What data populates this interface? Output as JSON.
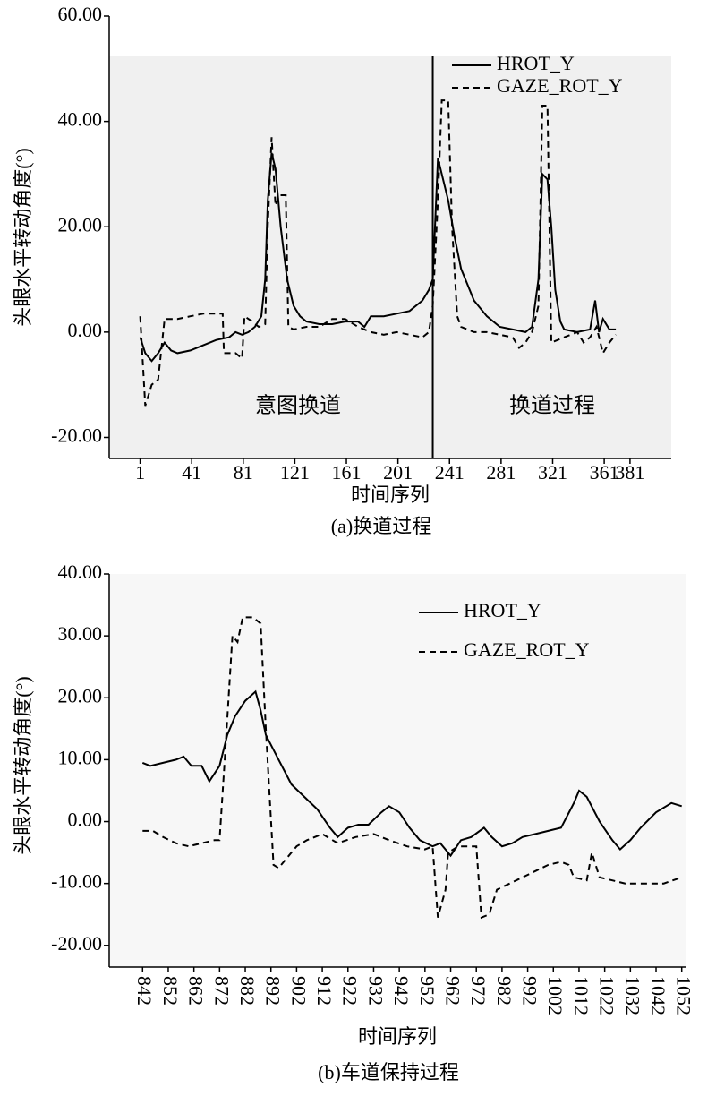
{
  "chart_data": [
    {
      "type": "line",
      "ylabel": "头眼水平转动角度(°)",
      "xlabel": "时间序列",
      "caption": "(a)换道过程",
      "xlim": [
        -23,
        413
      ],
      "ylim": [
        -24,
        60
      ],
      "xticks": [
        1,
        41,
        81,
        121,
        161,
        201,
        241,
        281,
        321,
        361,
        381
      ],
      "yticks": [
        {
          "value": -20,
          "label": "-20.00"
        },
        {
          "value": 0,
          "label": "0.00"
        },
        {
          "value": 20,
          "label": "20.00"
        },
        {
          "value": 40,
          "label": "40.00"
        },
        {
          "value": 60,
          "label": "60.00"
        }
      ],
      "vline": 228,
      "annotations": [
        "意图换道",
        "换道过程"
      ],
      "legend": "upper right",
      "series": [
        {
          "name": "HROT_Y",
          "color": "#000000",
          "dash": "solid",
          "x": [
            1,
            5,
            10,
            15,
            20,
            25,
            30,
            40,
            50,
            60,
            70,
            75,
            80,
            85,
            90,
            95,
            98,
            100,
            103,
            106,
            110,
            115,
            120,
            125,
            130,
            140,
            150,
            160,
            170,
            175,
            180,
            190,
            200,
            210,
            220,
            225,
            228,
            232,
            235,
            240,
            245,
            250,
            255,
            260,
            270,
            280,
            290,
            300,
            305,
            310,
            313,
            317,
            320,
            323,
            327,
            330,
            340,
            350,
            354,
            357,
            360,
            365,
            370
          ],
          "values": [
            -1,
            -4,
            -5.5,
            -4,
            -2,
            -3.5,
            -4,
            -3.5,
            -2.5,
            -1.5,
            -1,
            0,
            -0.5,
            0,
            1,
            3,
            10,
            25,
            34,
            31,
            20,
            10,
            5,
            3,
            2,
            1.5,
            1.5,
            2,
            2,
            1,
            3,
            3,
            3.5,
            4,
            6,
            8,
            10,
            33,
            30,
            25,
            18,
            12,
            9,
            6,
            3,
            1,
            0.5,
            0,
            1,
            10,
            30,
            29,
            20,
            8,
            2,
            0.5,
            0,
            0.5,
            6,
            0,
            2.5,
            0.5,
            0.5
          ]
        },
        {
          "name": "GAZE_ROT_Y",
          "color": "#000000",
          "dash": "dashed",
          "x": [
            1,
            5,
            10,
            15,
            20,
            30,
            40,
            50,
            60,
            65,
            66,
            75,
            80,
            82,
            88,
            93,
            98,
            100,
            103,
            106,
            109,
            114,
            116,
            120,
            130,
            140,
            150,
            160,
            170,
            180,
            190,
            200,
            210,
            220,
            225,
            228,
            232,
            235,
            240,
            243,
            247,
            250,
            260,
            270,
            280,
            290,
            295,
            300,
            305,
            310,
            313,
            317,
            320,
            330,
            340,
            345,
            350,
            355,
            360,
            365,
            370
          ],
          "values": [
            3,
            -14,
            -10,
            -9,
            2.5,
            2.5,
            3,
            3.5,
            3.5,
            3.5,
            -4,
            -4,
            -5,
            3,
            2,
            1,
            1.5,
            20,
            37,
            24,
            26,
            26,
            1,
            0.5,
            1,
            1,
            2.5,
            2.5,
            1,
            0,
            -0.5,
            0,
            -0.5,
            -1,
            0,
            5,
            25,
            44,
            44,
            20,
            3,
            1,
            0,
            0,
            -0.5,
            -1,
            -3,
            -2,
            0,
            5,
            43,
            43,
            -2,
            -1,
            0,
            -2,
            -1,
            1,
            -4,
            -2,
            -0.5
          ]
        }
      ]
    },
    {
      "type": "line",
      "ylabel": "头眼水平转动角度(°)",
      "xlabel": "时间序列",
      "caption": "(b)车道保持过程",
      "xlim": [
        829,
        1053.5
      ],
      "ylim": [
        -23.5,
        40
      ],
      "xticks": [
        842,
        852,
        862,
        872,
        882,
        892,
        902,
        912,
        922,
        932,
        942,
        952,
        962,
        972,
        982,
        992,
        1002,
        1012,
        1022,
        1032,
        1042,
        1052
      ],
      "yticks": [
        {
          "value": -20,
          "label": "-20.00"
        },
        {
          "value": -10,
          "label": "-10.00"
        },
        {
          "value": 0,
          "label": "0.00"
        },
        {
          "value": 10,
          "label": "10.00"
        },
        {
          "value": 20,
          "label": "20.00"
        },
        {
          "value": 30,
          "label": "30.00"
        },
        {
          "value": 40,
          "label": "40.00"
        }
      ],
      "legend": "upper right",
      "series": [
        {
          "name": "HROT_Y",
          "color": "#000000",
          "dash": "solid",
          "x": [
            842,
            845,
            850,
            855,
            858,
            861,
            865,
            868,
            872,
            875,
            878,
            882,
            886,
            888,
            890,
            895,
            900,
            905,
            910,
            915,
            918,
            922,
            926,
            930,
            935,
            938,
            942,
            946,
            950,
            955,
            958,
            962,
            966,
            970,
            975,
            978,
            982,
            986,
            990,
            995,
            1000,
            1005,
            1010,
            1012,
            1015,
            1020,
            1025,
            1028,
            1032,
            1036,
            1042,
            1048,
            1052
          ],
          "values": [
            9.5,
            9,
            9.5,
            10,
            10.5,
            9,
            9,
            6.5,
            9,
            14,
            17,
            19.5,
            21,
            18,
            14,
            10,
            6,
            4,
            2,
            -1,
            -2.5,
            -1,
            -0.5,
            -0.5,
            1.5,
            2.5,
            1.5,
            -1,
            -3,
            -4,
            -3.5,
            -5.5,
            -3,
            -2.5,
            -1,
            -2.5,
            -4,
            -3.5,
            -2.5,
            -2,
            -1.5,
            -1,
            3,
            5,
            4,
            0,
            -3,
            -4.5,
            -3,
            -1,
            1.5,
            3,
            2.5
          ]
        },
        {
          "name": "GAZE_ROT_Y",
          "color": "#000000",
          "dash": "dashed",
          "x": [
            842,
            846,
            850,
            855,
            860,
            865,
            870,
            872,
            874,
            877,
            879,
            881,
            885,
            888,
            890,
            893,
            895,
            898,
            902,
            906,
            912,
            918,
            925,
            932,
            938,
            945,
            952,
            955,
            957,
            960,
            961,
            965,
            970,
            972,
            974,
            977,
            980,
            985,
            990,
            995,
            1000,
            1005,
            1008,
            1010,
            1015,
            1017,
            1020,
            1025,
            1030,
            1040,
            1045,
            1052
          ],
          "values": [
            -1.5,
            -1.5,
            -2.5,
            -3.5,
            -4,
            -3.5,
            -3,
            -3,
            10,
            30,
            29,
            33,
            33,
            32,
            15,
            -7,
            -7.5,
            -6,
            -4,
            -3,
            -2,
            -3.5,
            -2.5,
            -2,
            -3,
            -4,
            -4.5,
            -4,
            -15.5,
            -11,
            -5,
            -4,
            -4,
            -4,
            -15.5,
            -15,
            -11,
            -10,
            -9,
            -8,
            -7,
            -6.5,
            -7,
            -9,
            -9.5,
            -5,
            -9,
            -9.5,
            -10,
            -10,
            -10,
            -9
          ]
        }
      ]
    }
  ]
}
